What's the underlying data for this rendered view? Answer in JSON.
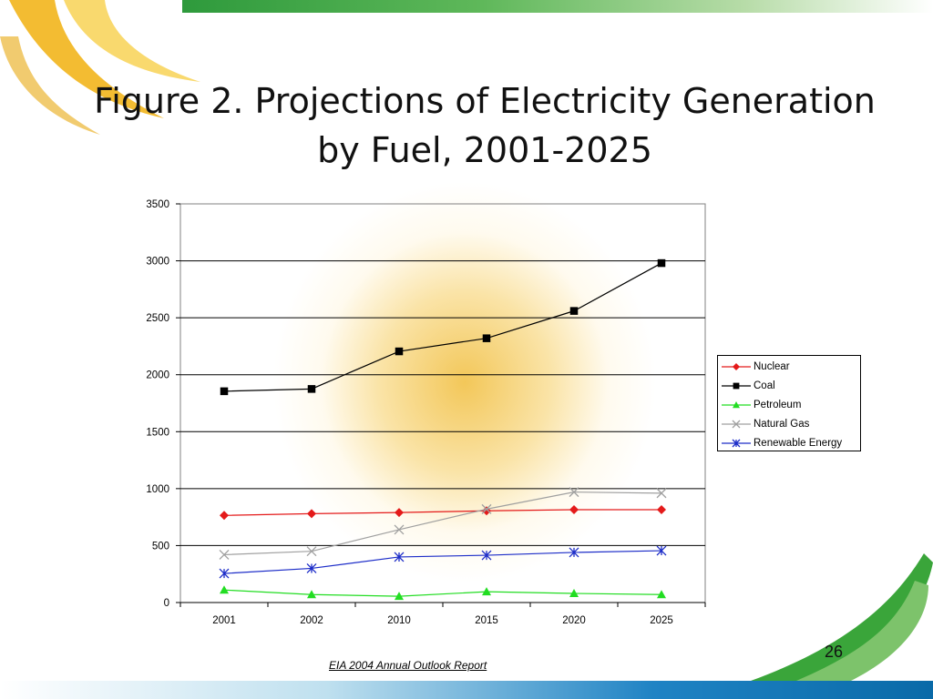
{
  "title": {
    "line1": "Figure 2. Projections of Electricity Generation",
    "line2": "by Fuel, 2001-2025"
  },
  "slide_number": "26",
  "source": "EIA 2004 Annual Outlook Report",
  "colors": {
    "nuclear": "#e41a1a",
    "coal": "#000000",
    "petroleum": "#22dd22",
    "natural_gas": "#a0a0a0",
    "renewable": "#1c2cc8"
  },
  "chart_data": {
    "type": "line",
    "title": "",
    "xlabel": "",
    "ylabel": "",
    "categories": [
      "2001",
      "2002",
      "2010",
      "2015",
      "2020",
      "2025"
    ],
    "ylim": [
      0,
      3500
    ],
    "yticks": [
      "0",
      "500",
      "1000",
      "1500",
      "2000",
      "2500",
      "3000",
      "3500"
    ],
    "grid": "horizontal major gridlines",
    "legend": "right",
    "series": [
      {
        "name": "Nuclear",
        "marker": "diamond",
        "values": [
          765,
          780,
          790,
          805,
          815,
          815
        ]
      },
      {
        "name": "Coal",
        "marker": "square",
        "values": [
          1855,
          1875,
          2205,
          2320,
          2560,
          2980
        ]
      },
      {
        "name": "Petroleum",
        "marker": "triangle",
        "values": [
          110,
          70,
          55,
          95,
          80,
          70
        ]
      },
      {
        "name": "Natural Gas",
        "marker": "x",
        "values": [
          420,
          450,
          640,
          820,
          970,
          960
        ]
      },
      {
        "name": "Renewable Energy",
        "marker": "asterisk",
        "values": [
          255,
          300,
          400,
          415,
          440,
          455
        ]
      }
    ]
  }
}
